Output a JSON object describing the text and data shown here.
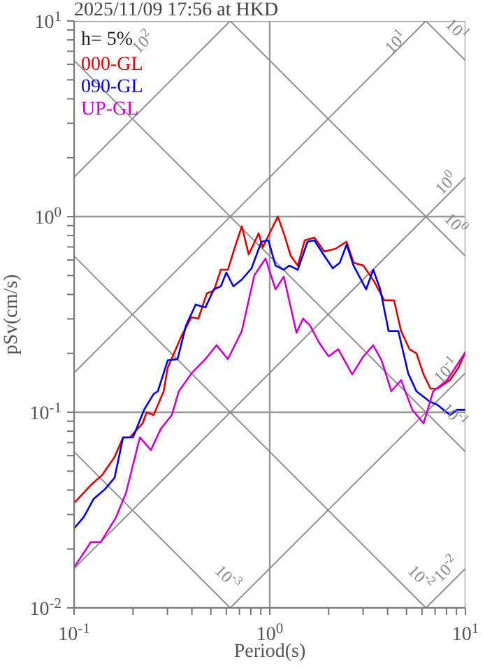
{
  "chart_data": {
    "type": "line",
    "title": "2025/11/09 17:56 at HKD",
    "xlabel": "Period(s)",
    "ylabel": "pSv(cm/s)",
    "annotations": [
      "h= 5%",
      "10$^{2}$",
      "10$^{1}$",
      "10$^{1}$",
      "10$^{0}$",
      "10$^{0}$",
      "10$^{-1}$",
      "10$^{-1}$",
      "10$^{-3}$",
      "10$^{-2}$",
      "10$^{-2}$"
    ],
    "log": "xy",
    "grid": true,
    "legend": "top left",
    "marker": "none",
    "line_style": "solid",
    "xlim": [
      0.1,
      10
    ],
    "ylim": [
      0.01,
      10
    ],
    "xticks": [
      {
        "value": 0.1,
        "label": "10$^{-1}$"
      },
      {
        "value": 0.2,
        "label": null
      },
      {
        "value": 0.3,
        "label": null
      },
      {
        "value": 0.4,
        "label": null
      },
      {
        "value": 0.5,
        "label": null
      },
      {
        "value": 0.6,
        "label": null
      },
      {
        "value": 0.7,
        "label": null
      },
      {
        "value": 0.8,
        "label": null
      },
      {
        "value": 0.9,
        "label": null
      },
      {
        "value": 1,
        "label": "10$^{0}$"
      },
      {
        "value": 2,
        "label": null
      },
      {
        "value": 3,
        "label": null
      },
      {
        "value": 4,
        "label": null
      },
      {
        "value": 5,
        "label": null
      },
      {
        "value": 6,
        "label": null
      },
      {
        "value": 7,
        "label": null
      },
      {
        "value": 8,
        "label": null
      },
      {
        "value": 9,
        "label": null
      },
      {
        "value": 10,
        "label": "10$^{1}$"
      }
    ],
    "yticks": [
      {
        "value": 0.01,
        "label": "10$^{-2}$"
      },
      {
        "value": 0.02,
        "label": null
      },
      {
        "value": 0.03,
        "label": null
      },
      {
        "value": 0.04,
        "label": null
      },
      {
        "value": 0.05,
        "label": null
      },
      {
        "value": 0.06,
        "label": null
      },
      {
        "value": 0.07,
        "label": null
      },
      {
        "value": 0.08,
        "label": null
      },
      {
        "value": 0.09,
        "label": null
      },
      {
        "value": 0.1,
        "label": "10$^{-1}$"
      },
      {
        "value": 0.2,
        "label": null
      },
      {
        "value": 0.3,
        "label": null
      },
      {
        "value": 0.4,
        "label": null
      },
      {
        "value": 0.5,
        "label": null
      },
      {
        "value": 0.6,
        "label": null
      },
      {
        "value": 0.7,
        "label": null
      },
      {
        "value": 0.8,
        "label": null
      },
      {
        "value": 0.9,
        "label": null
      },
      {
        "value": 1,
        "label": "10$^{0}$"
      },
      {
        "value": 2,
        "label": null
      },
      {
        "value": 3,
        "label": null
      },
      {
        "value": 4,
        "label": null
      },
      {
        "value": 5,
        "label": null
      },
      {
        "value": 6,
        "label": null
      },
      {
        "value": 7,
        "label": null
      },
      {
        "value": 8,
        "label": null
      },
      {
        "value": 9,
        "label": null
      },
      {
        "value": 10,
        "label": "10$^{1}$"
      }
    ],
    "series": [
      {
        "color": "#888888",
        "x": [
          0.1,
          0.628
        ],
        "values": [
          1.59,
          10
        ]
      },
      {
        "color": "#888888",
        "x": [
          0.1,
          6.28
        ],
        "values": [
          0.159,
          10
        ]
      },
      {
        "color": "#888888",
        "x": [
          0.1,
          10
        ],
        "values": [
          0.0159,
          1.59
        ]
      },
      {
        "color": "#888888",
        "x": [
          0.628,
          10
        ],
        "values": [
          0.01,
          0.159
        ]
      },
      {
        "color": "#888888",
        "x": [
          6.28,
          10
        ],
        "values": [
          0.01,
          0.0159
        ]
      },
      {
        "color": "#888888",
        "x": [
          0.1,
          0.628
        ],
        "values": [
          0.0628,
          0.01
        ]
      },
      {
        "color": "#888888",
        "x": [
          0.1,
          6.28
        ],
        "values": [
          0.628,
          0.01
        ]
      },
      {
        "color": "#888888",
        "x": [
          0.1,
          10
        ],
        "values": [
          6.28,
          0.0628
        ]
      },
      {
        "color": "#888888",
        "x": [
          0.628,
          10
        ],
        "values": [
          10,
          0.628
        ]
      },
      {
        "color": "#888888",
        "x": [
          6.28,
          10
        ],
        "values": [
          10,
          6.28
        ]
      },
      {
        "name": "000-GL",
        "color": "#dd0000",
        "x": [
          0.1,
          0.122,
          0.139,
          0.161,
          0.178,
          0.193,
          0.224,
          0.235,
          0.255,
          0.287,
          0.301,
          0.355,
          0.398,
          0.432,
          0.477,
          0.518,
          0.562,
          0.611,
          0.663,
          0.72,
          0.781,
          0.877,
          0.921,
          1.03,
          1.1,
          1.18,
          1.28,
          1.39,
          1.51,
          1.69,
          1.9,
          2.17,
          2.47,
          2.68,
          3.01,
          3.43,
          3.85,
          4.32,
          4.69,
          5.18,
          5.62,
          6.11,
          6.63,
          7.2,
          8.34,
          9.21,
          10
        ],
        "values": [
          0.0343,
          0.0425,
          0.0477,
          0.059,
          0.0744,
          0.0744,
          0.0877,
          0.1,
          0.0968,
          0.128,
          0.169,
          0.247,
          0.306,
          0.301,
          0.405,
          0.418,
          0.535,
          0.535,
          0.696,
          0.891,
          0.641,
          0.821,
          0.696,
          0.877,
          1.0,
          0.821,
          0.631,
          0.562,
          0.756,
          0.782,
          0.663,
          0.685,
          0.744,
          0.581,
          0.562,
          0.462,
          0.373,
          0.373,
          0.26,
          0.21,
          0.2,
          0.156,
          0.132,
          0.132,
          0.146,
          0.169,
          0.203
        ]
      },
      {
        "name": "090-GL",
        "color": "#0000dd",
        "x": [
          0.1,
          0.112,
          0.126,
          0.144,
          0.161,
          0.178,
          0.2,
          0.228,
          0.255,
          0.268,
          0.301,
          0.338,
          0.373,
          0.418,
          0.469,
          0.518,
          0.562,
          0.6,
          0.652,
          0.72,
          0.807,
          0.906,
          0.984,
          1.07,
          1.18,
          1.26,
          1.39,
          1.56,
          1.69,
          1.9,
          2.1,
          2.28,
          2.47,
          2.68,
          3.11,
          3.38,
          3.67,
          4.05,
          4.54,
          5.1,
          5.62,
          6.52,
          7.2,
          8.34,
          9.06,
          10
        ],
        "values": [
          0.0255,
          0.0291,
          0.0361,
          0.0405,
          0.0462,
          0.0744,
          0.0744,
          0.103,
          0.124,
          0.128,
          0.184,
          0.187,
          0.277,
          0.355,
          0.343,
          0.425,
          0.44,
          0.518,
          0.44,
          0.477,
          0.544,
          0.744,
          0.756,
          0.562,
          0.535,
          0.562,
          0.535,
          0.744,
          0.756,
          0.631,
          0.544,
          0.581,
          0.72,
          0.562,
          0.425,
          0.535,
          0.425,
          0.26,
          0.26,
          0.158,
          0.128,
          0.114,
          0.109,
          0.0968,
          0.103,
          0.103
        ]
      },
      {
        "name": "UP-GL",
        "color": "#cc00cc",
        "x": [
          0.1,
          0.122,
          0.137,
          0.164,
          0.184,
          0.217,
          0.247,
          0.277,
          0.316,
          0.343,
          0.398,
          0.469,
          0.535,
          0.611,
          0.72,
          0.834,
          0.952,
          1.07,
          1.18,
          1.37,
          1.48,
          1.61,
          1.78,
          2.0,
          2.24,
          2.64,
          3.01,
          3.38,
          3.73,
          4.18,
          4.69,
          5.35,
          6.11,
          6.85,
          8.07,
          10
        ],
        "values": [
          0.0161,
          0.0217,
          0.0217,
          0.0291,
          0.0385,
          0.0744,
          0.0641,
          0.082,
          0.0968,
          0.128,
          0.158,
          0.187,
          0.22,
          0.187,
          0.26,
          0.501,
          0.611,
          0.425,
          0.493,
          0.255,
          0.301,
          0.277,
          0.228,
          0.193,
          0.21,
          0.156,
          0.193,
          0.22,
          0.184,
          0.128,
          0.146,
          0.103,
          0.0877,
          0.128,
          0.146,
          0.203
        ]
      }
    ]
  }
}
